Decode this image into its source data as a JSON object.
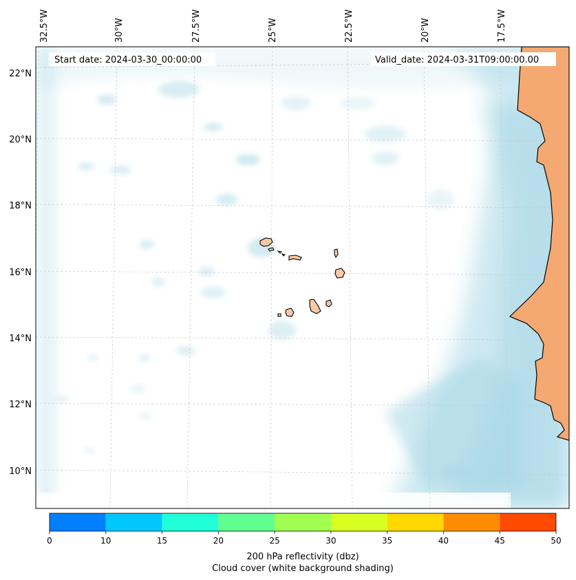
{
  "map": {
    "start_date": "Start date: 2024-03-30_00:00:00",
    "valid_date": "Valid_date: 2024-03-31T09:00:00.00",
    "lon_labels": [
      "32.5°W",
      "30°W",
      "27.5°W",
      "25°W",
      "22.5°W",
      "20°W",
      "17.5°W"
    ],
    "lat_labels": [
      "22°N",
      "20°N",
      "18°N",
      "16°N",
      "14°N",
      "12°N",
      "10°N"
    ]
  },
  "colorbar": {
    "ticks": [
      "0",
      "10",
      "15",
      "20",
      "25",
      "30",
      "35",
      "40",
      "45",
      "50"
    ],
    "colors": [
      "#0080ff",
      "#00c8ff",
      "#20ffd8",
      "#60ff90",
      "#a0ff50",
      "#d8ff20",
      "#ffd800",
      "#ff8c00",
      "#ff4a00"
    ],
    "label_line1": "200 hPa reflectivity (dbz)",
    "label_line2": "Cloud cover (white background shading)"
  },
  "colors": {
    "land": "#f4a872",
    "cloud": "#a8d8e6"
  }
}
